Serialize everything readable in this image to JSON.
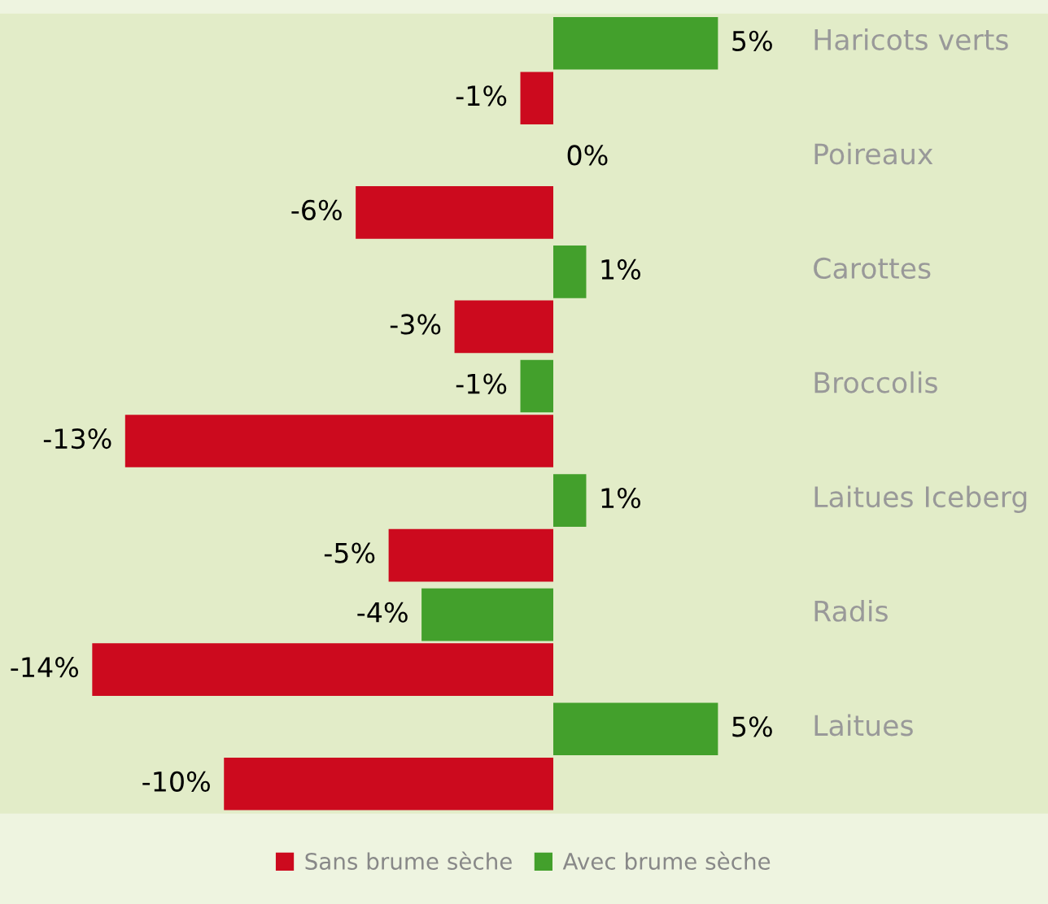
{
  "chart_data": {
    "type": "bar",
    "orientation": "horizontal",
    "categories": [
      "Haricots verts",
      "Poireaux",
      "Carottes",
      "Broccolis",
      "Laitues Iceberg",
      "Radis",
      "Laitues"
    ],
    "series": [
      {
        "name": "Avec brume sèche",
        "color": "#43a02c",
        "values": [
          5,
          0,
          1,
          -1,
          1,
          -4,
          5
        ],
        "value_labels": [
          "5%",
          "0%",
          "1%",
          "-1%",
          "1%",
          "-4%",
          "5%"
        ]
      },
      {
        "name": "Sans brume sèche",
        "color": "#cc0a1e",
        "values": [
          -1,
          -6,
          -3,
          -13,
          -5,
          -14,
          -10
        ],
        "value_labels": [
          "-1%",
          "-6%",
          "-3%",
          "-13%",
          "-5%",
          "-14%",
          "-10%"
        ]
      }
    ],
    "legend": "bottom"
  }
}
